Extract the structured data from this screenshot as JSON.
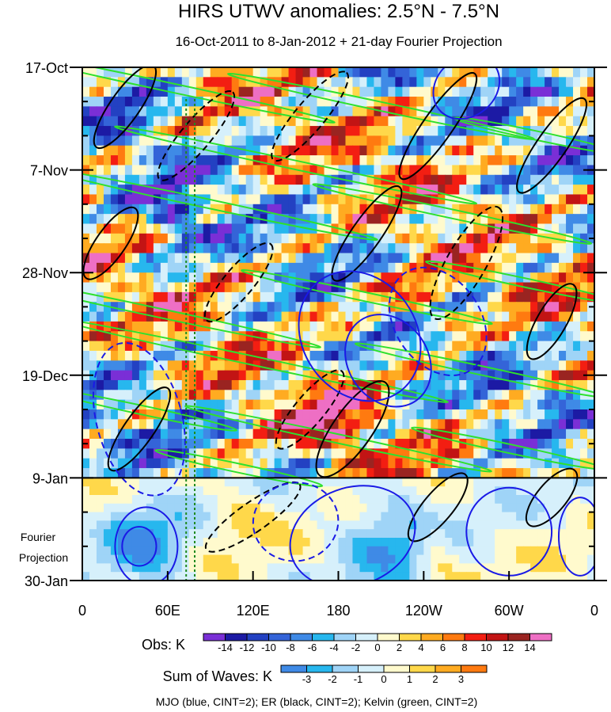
{
  "chart_data": {
    "type": "heatmap",
    "title": "HIRS UTWV anomalies: 2.5°N - 7.5°N",
    "subtitle": "16-Oct-2011 to 8-Jan-2012 + 21-day Fourier Projection",
    "x_tick_labels": [
      "0",
      "60E",
      "120E",
      "180",
      "120W",
      "60W",
      "0"
    ],
    "x_tick_longitudes": [
      0,
      60,
      120,
      180,
      240,
      300,
      360
    ],
    "x_range_deg": [
      0,
      360
    ],
    "y_tick_labels": [
      "17-Oct",
      "7-Nov",
      "28-Nov",
      "19-Dec",
      "9-Jan",
      "30-Jan"
    ],
    "y_tick_days": [
      0,
      21,
      42,
      63,
      84,
      105
    ],
    "y_range_days": [
      0,
      105
    ],
    "observation_end_day": 84,
    "forecast_label_line1": "Fourier",
    "forecast_label_line2": "Projection",
    "vertical_reference_lines_deg": [
      73,
      79
    ],
    "obs_colorbar": {
      "label": "Obs: K",
      "levels": [
        "-14",
        "-12",
        "-10",
        "-8",
        "-6",
        "-4",
        "-2",
        "0",
        "2",
        "4",
        "6",
        "8",
        "10",
        "12",
        "14"
      ],
      "colors": [
        "#7a2fd6",
        "#1c1aa4",
        "#2341c2",
        "#3464d8",
        "#3f8ae6",
        "#27b7ee",
        "#9fd4f7",
        "#d6f0fb",
        "#fffacd",
        "#ffd84a",
        "#ffab21",
        "#ff7a10",
        "#f31e12",
        "#c21414",
        "#9a2421",
        "#ee6fc4"
      ]
    },
    "waves_colorbar": {
      "label": "Sum of Waves: K",
      "levels": [
        "-3",
        "-2",
        "-1",
        "0",
        "1",
        "2",
        "3"
      ],
      "colors": [
        "#3f8ae6",
        "#27b7ee",
        "#9fd4f7",
        "#d6f0fb",
        "#fffacd",
        "#ffd84a",
        "#ffab21",
        "#ff7a10"
      ]
    },
    "caption": "MJO (blue, CINT=2); ER (black, CINT=2); Kelvin (green, CINT=2)",
    "contour_colors": {
      "mjo": "#1a1ae6",
      "er": "#000000",
      "kelvin": "#2ee02e"
    }
  }
}
